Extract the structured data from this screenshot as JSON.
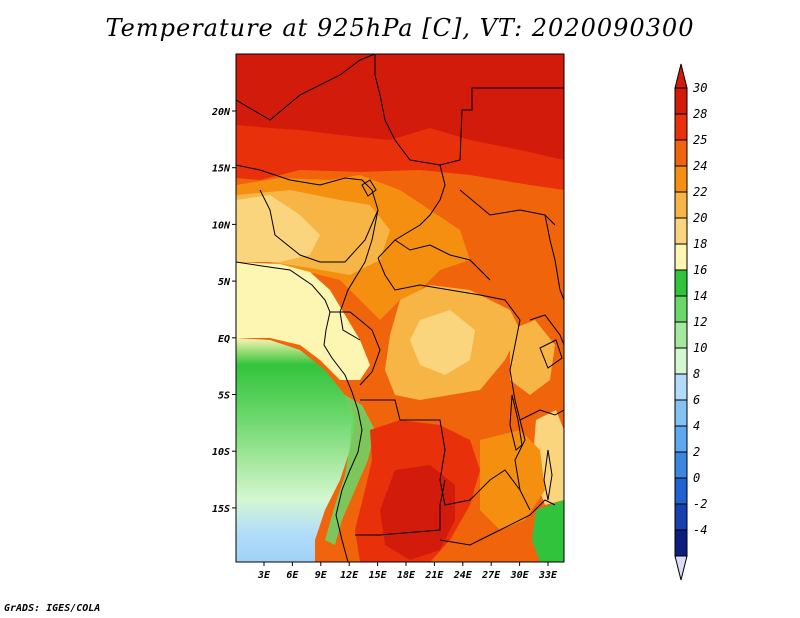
{
  "title": "Temperature at 925hPa [C], VT: 2020090300",
  "credit": "GrADS: IGES/COLA",
  "map": {
    "lon_labels": [
      "3E",
      "6E",
      "9E",
      "12E",
      "15E",
      "18E",
      "21E",
      "24E",
      "27E",
      "30E",
      "33E"
    ],
    "lat_labels": [
      "20N",
      "15N",
      "10N",
      "5N",
      "EQ",
      "5S",
      "10S",
      "15S"
    ]
  },
  "colorbar": {
    "levels": [
      {
        "label": "30",
        "color": "#d21b0b"
      },
      {
        "label": "28",
        "color": "#e8310b"
      },
      {
        "label": "25",
        "color": "#f0640c"
      },
      {
        "label": "24",
        "color": "#f58f10"
      },
      {
        "label": "22",
        "color": "#f7b546"
      },
      {
        "label": "20",
        "color": "#fad57e"
      },
      {
        "label": "18",
        "color": "#fdf5b2"
      },
      {
        "label": "16",
        "color": "#32c33c"
      },
      {
        "label": "14",
        "color": "#6ad76a"
      },
      {
        "label": "12",
        "color": "#a5e89e"
      },
      {
        "label": "10",
        "color": "#d4f7d2"
      },
      {
        "label": "8",
        "color": "#b0dcfa"
      },
      {
        "label": "6",
        "color": "#84c2f4"
      },
      {
        "label": "4",
        "color": "#5da8ee"
      },
      {
        "label": "2",
        "color": "#3a86e0"
      },
      {
        "label": "0",
        "color": "#1f62d0"
      },
      {
        "label": "-2",
        "color": "#1740b0"
      },
      {
        "label": "-4",
        "color": "#0d1e80"
      }
    ],
    "below_color": "#dcdcf6"
  }
}
